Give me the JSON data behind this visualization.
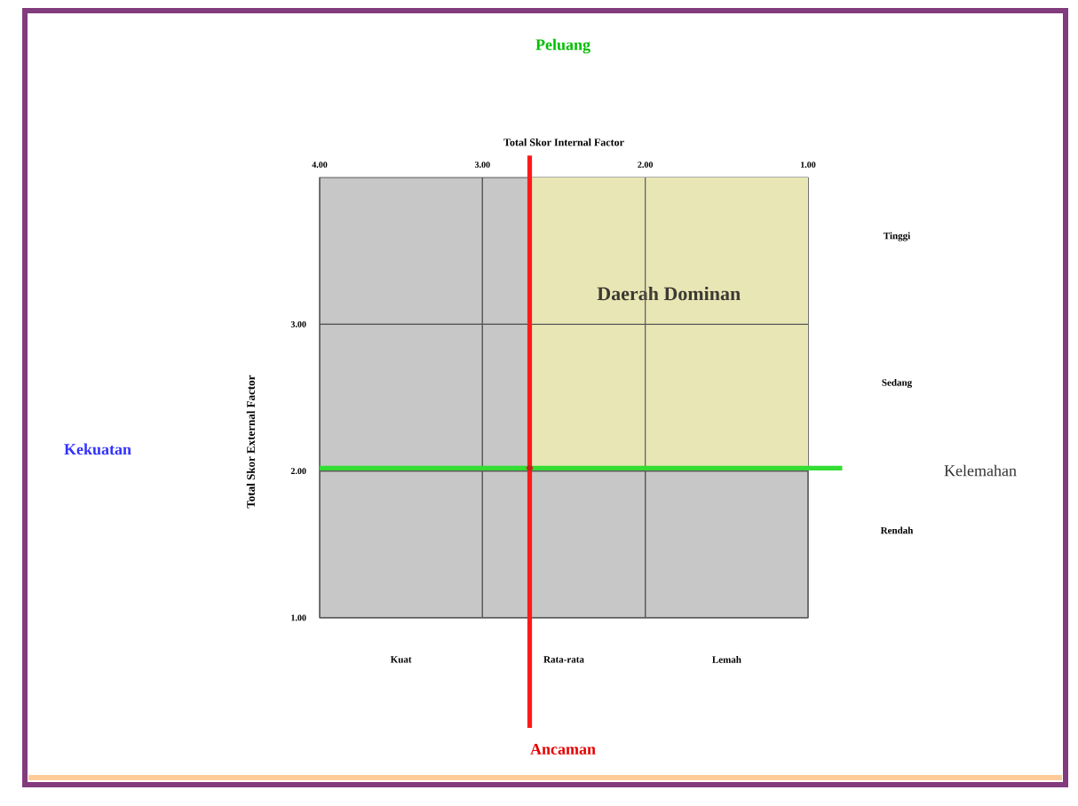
{
  "chart_data": {
    "type": "scatter",
    "title": "Peluang",
    "x": [
      2.71
    ],
    "values": [
      2.02
    ],
    "color": "#cc1a1a",
    "xlabel": "Total Skor Internal Factor",
    "ylabel": "Total Skor External Factor",
    "xlim": [
      4,
      1
    ],
    "ylim": [
      1,
      4
    ],
    "xticks": [
      {
        "value": 4,
        "label": "4.00"
      },
      {
        "value": 3,
        "label": "3.00"
      },
      {
        "value": 2,
        "label": "2.00"
      },
      {
        "value": 1,
        "label": "1.00"
      }
    ],
    "yticks": [
      {
        "value": 1,
        "label": "1.00"
      },
      {
        "value": 2,
        "label": "2.00"
      },
      {
        "value": 3,
        "label": "3.00"
      }
    ],
    "grid": true,
    "ref_lines": [
      {
        "axis": "x",
        "value": 2.71,
        "color": "#ff1a1a"
      },
      {
        "axis": "y",
        "value": 2.02,
        "color": "#33dd33"
      }
    ],
    "bands": [
      {
        "axis": "x",
        "from": 2.71,
        "to": 1,
        "label": "Daerah Dominan",
        "color": "#e8e6b4"
      }
    ],
    "annotations": [
      "Ancaman",
      "Kekuatan",
      "Kelemahan",
      "Kuat",
      "Rata-rata",
      "Lemah",
      "Tinggi",
      "Sedang",
      "Rendah"
    ]
  }
}
